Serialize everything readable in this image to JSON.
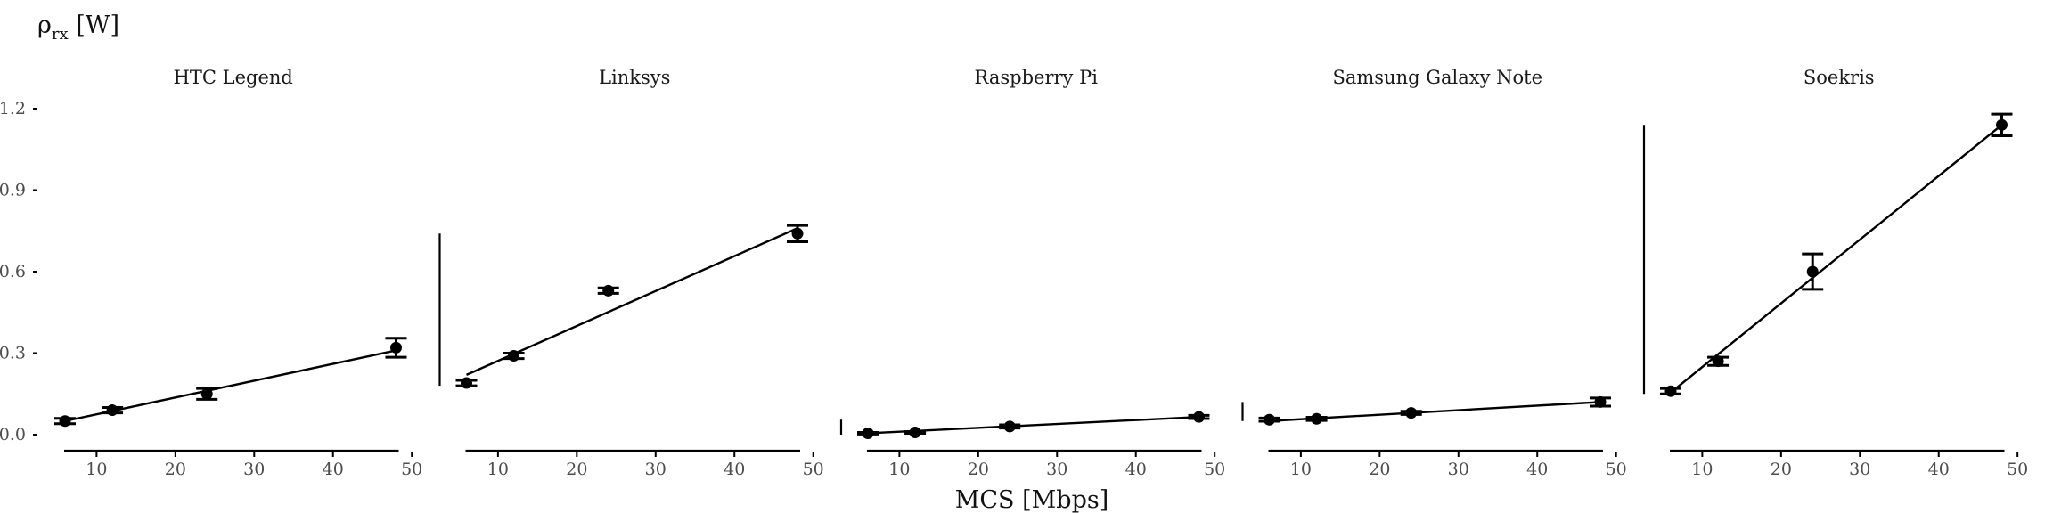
{
  "chart_data": {
    "type": "scatter",
    "ylabel_main": "ρ",
    "ylabel_sub": "rx",
    "ylabel_unit": " [W]",
    "xlabel": "MCS [Mbps]",
    "ylim": [
      0,
      1.2
    ],
    "yticks": [
      0.0,
      0.3,
      0.6,
      0.9,
      1.2
    ],
    "ytick_labels": [
      "0.0",
      "0.3",
      "0.6",
      "0.9",
      "1.2"
    ],
    "xlim": [
      6,
      48
    ],
    "xticks": [
      10,
      20,
      30,
      40,
      50
    ],
    "xtick_labels": [
      "10",
      "20",
      "30",
      "40",
      "50"
    ],
    "grid": false,
    "facets": [
      {
        "title": "HTC Legend",
        "x": [
          6,
          12,
          24,
          48
        ],
        "y": [
          0.05,
          0.09,
          0.15,
          0.32
        ],
        "err": [
          0.01,
          0.01,
          0.02,
          0.035
        ],
        "fit": [
          [
            6,
            0.05
          ],
          [
            48,
            0.31
          ]
        ],
        "yaxis_range": [
          0,
          0.32
        ]
      },
      {
        "title": "Linksys",
        "x": [
          6,
          12,
          24,
          48
        ],
        "y": [
          0.19,
          0.29,
          0.53,
          0.74
        ],
        "err": [
          0.01,
          0.01,
          0.01,
          0.03
        ],
        "fit": [
          [
            6,
            0.22
          ],
          [
            48,
            0.76
          ]
        ],
        "yaxis_range": [
          0.18,
          0.74
        ]
      },
      {
        "title": "Raspberry Pi",
        "x": [
          6,
          12,
          24,
          48
        ],
        "y": [
          0.005,
          0.008,
          0.03,
          0.065
        ],
        "err": [
          0.003,
          0.003,
          0.006,
          0.006
        ],
        "fit": [
          [
            6,
            0.005
          ],
          [
            48,
            0.065
          ]
        ],
        "yaxis_range": [
          0.0,
          0.055
        ]
      },
      {
        "title": "Samsung Galaxy Note",
        "x": [
          6,
          12,
          24,
          48
        ],
        "y": [
          0.055,
          0.058,
          0.08,
          0.12
        ],
        "err": [
          0.006,
          0.006,
          0.006,
          0.015
        ],
        "fit": [
          [
            6,
            0.05
          ],
          [
            48,
            0.12
          ]
        ],
        "yaxis_range": [
          0.05,
          0.12
        ]
      },
      {
        "title": "Soekris",
        "x": [
          6,
          12,
          24,
          48
        ],
        "y": [
          0.16,
          0.27,
          0.6,
          1.14
        ],
        "err": [
          0.01,
          0.015,
          0.065,
          0.04
        ],
        "fit": [
          [
            6,
            0.155
          ],
          [
            48,
            1.14
          ]
        ],
        "yaxis_range": [
          0.15,
          1.14
        ]
      }
    ]
  }
}
